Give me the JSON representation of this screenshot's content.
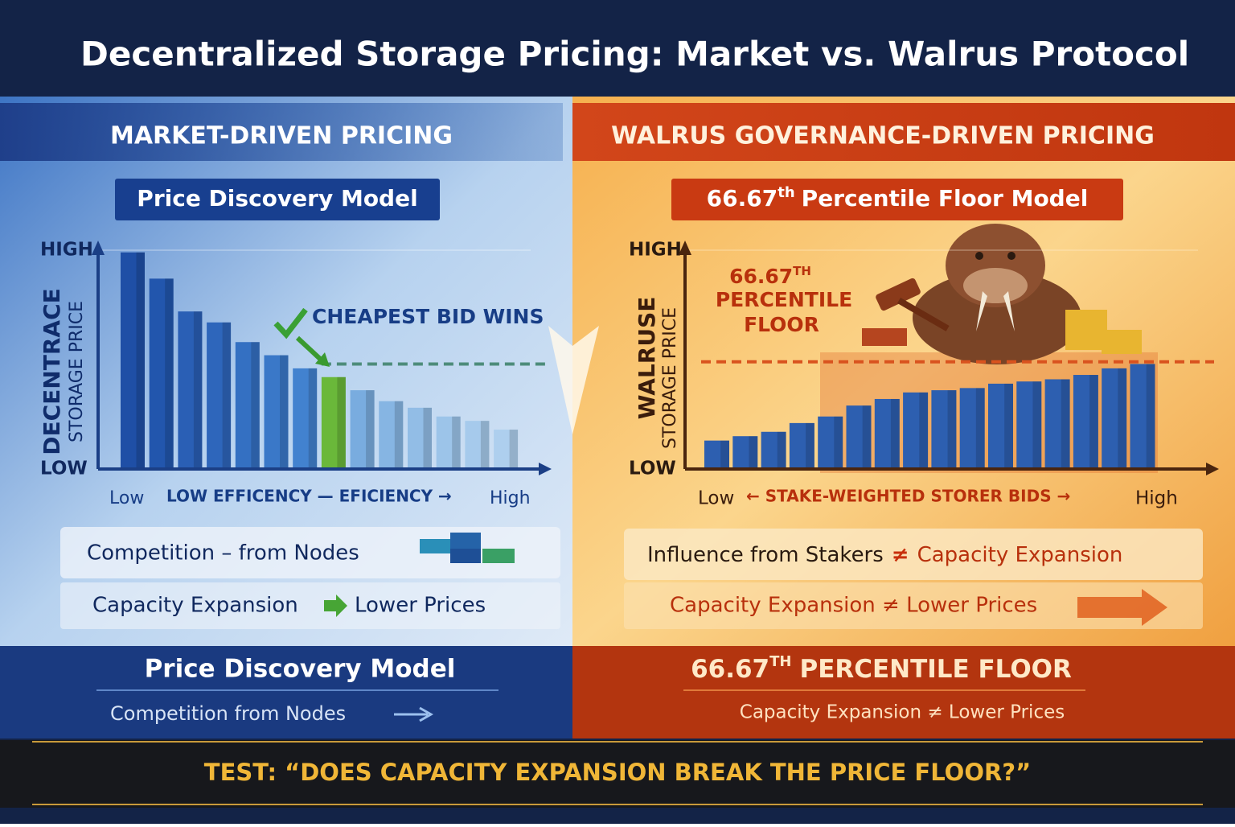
{
  "title": "Decentralized Storage Pricing: Market vs. Walrus Protocol",
  "left": {
    "heading": "MARKET-DRIVEN PRICING",
    "subheading": "Price Discovery Model",
    "point_1": "Competition – from Nodes",
    "point_2a": "Capacity Expansion",
    "point_2b": "Lower Prices",
    "summary_title": "Price Discovery Model",
    "summary_text": "Competition from Nodes"
  },
  "right": {
    "heading": "WALRUS GOVERNANCE-DRIVEN PRICING",
    "subheading_a": "66.67",
    "subheading_sup": "th",
    "subheading_b": "Percentile Floor Model",
    "point_1a": "Influence from Stakers",
    "point_1b": "≠",
    "point_1c": "Capacity Expansion",
    "point_2": "Capacity Expansion ≠ Lower Prices",
    "summary_title_a": "66.67",
    "summary_title_sup": "TH",
    "summary_title_b": "PERCENTILE FLOOR",
    "summary_text": "Capacity Expansion ≠ Lower Prices"
  },
  "footer": "TEST: “DOES CAPACITY EXPANSION BREAK THE PRICE FLOOR?”",
  "chart_data": [
    {
      "type": "bar",
      "ylabel": [
        "DECENTRACE",
        "STORAGE PRICE"
      ],
      "xlabel": {
        "low": "Low",
        "middle": "LOW EFFICENCY — EFICIENCY →",
        "high": "High"
      },
      "annotation": "CHEAPEST BID WINS",
      "values": [
        99,
        87,
        72,
        67,
        58,
        52,
        46,
        42,
        36,
        31,
        28,
        24,
        22,
        18
      ],
      "colors": [
        "#1f4fa6",
        "#2256ad",
        "#2a5fb5",
        "#2e66bb",
        "#3470c2",
        "#3a78c8",
        "#4282cf",
        "#6ab83a",
        "#79acdf",
        "#86b5e3",
        "#92bde6",
        "#9cc4e9",
        "#a6caec",
        "#aecfee"
      ],
      "threshold": 48,
      "threshold_color": "#4d8c7a",
      "ylim": [
        0,
        100
      ],
      "yticks": [
        {
          "value": 0,
          "label": "LOW"
        },
        {
          "value": 100,
          "label": "HIGH"
        }
      ],
      "grid": true
    },
    {
      "type": "bar",
      "ylabel": [
        "WALRUSE",
        "STORAGE PRICE"
      ],
      "xlabel": {
        "low": "Low",
        "middle": "← STAKE-WEIGHTED STORER BIDS →",
        "high": "High"
      },
      "annotation": [
        "66.67",
        "TH",
        "PERCENTILE",
        "FLOOR"
      ],
      "values": [
        13,
        15,
        17,
        21,
        24,
        29,
        32,
        35,
        36,
        37,
        39,
        40,
        41,
        43,
        46,
        48
      ],
      "colors": [
        "#2d5fb0",
        "#2d5fb0",
        "#2d5fb0",
        "#2d5fb0",
        "#2d5fb0",
        "#2d5fb0",
        "#2d5fb0",
        "#2d5fb0",
        "#2d5fb0",
        "#2d5fb0",
        "#2d5fb0",
        "#2d5fb0",
        "#2d5fb0",
        "#2d5fb0",
        "#2d5fb0",
        "#2d5fb0"
      ],
      "threshold": 49,
      "threshold_color": "#d9531e",
      "ylim": [
        0,
        100
      ],
      "yticks": [
        {
          "value": 0,
          "label": "LOW"
        },
        {
          "value": 100,
          "label": "HIGH"
        }
      ],
      "grid": true
    }
  ]
}
